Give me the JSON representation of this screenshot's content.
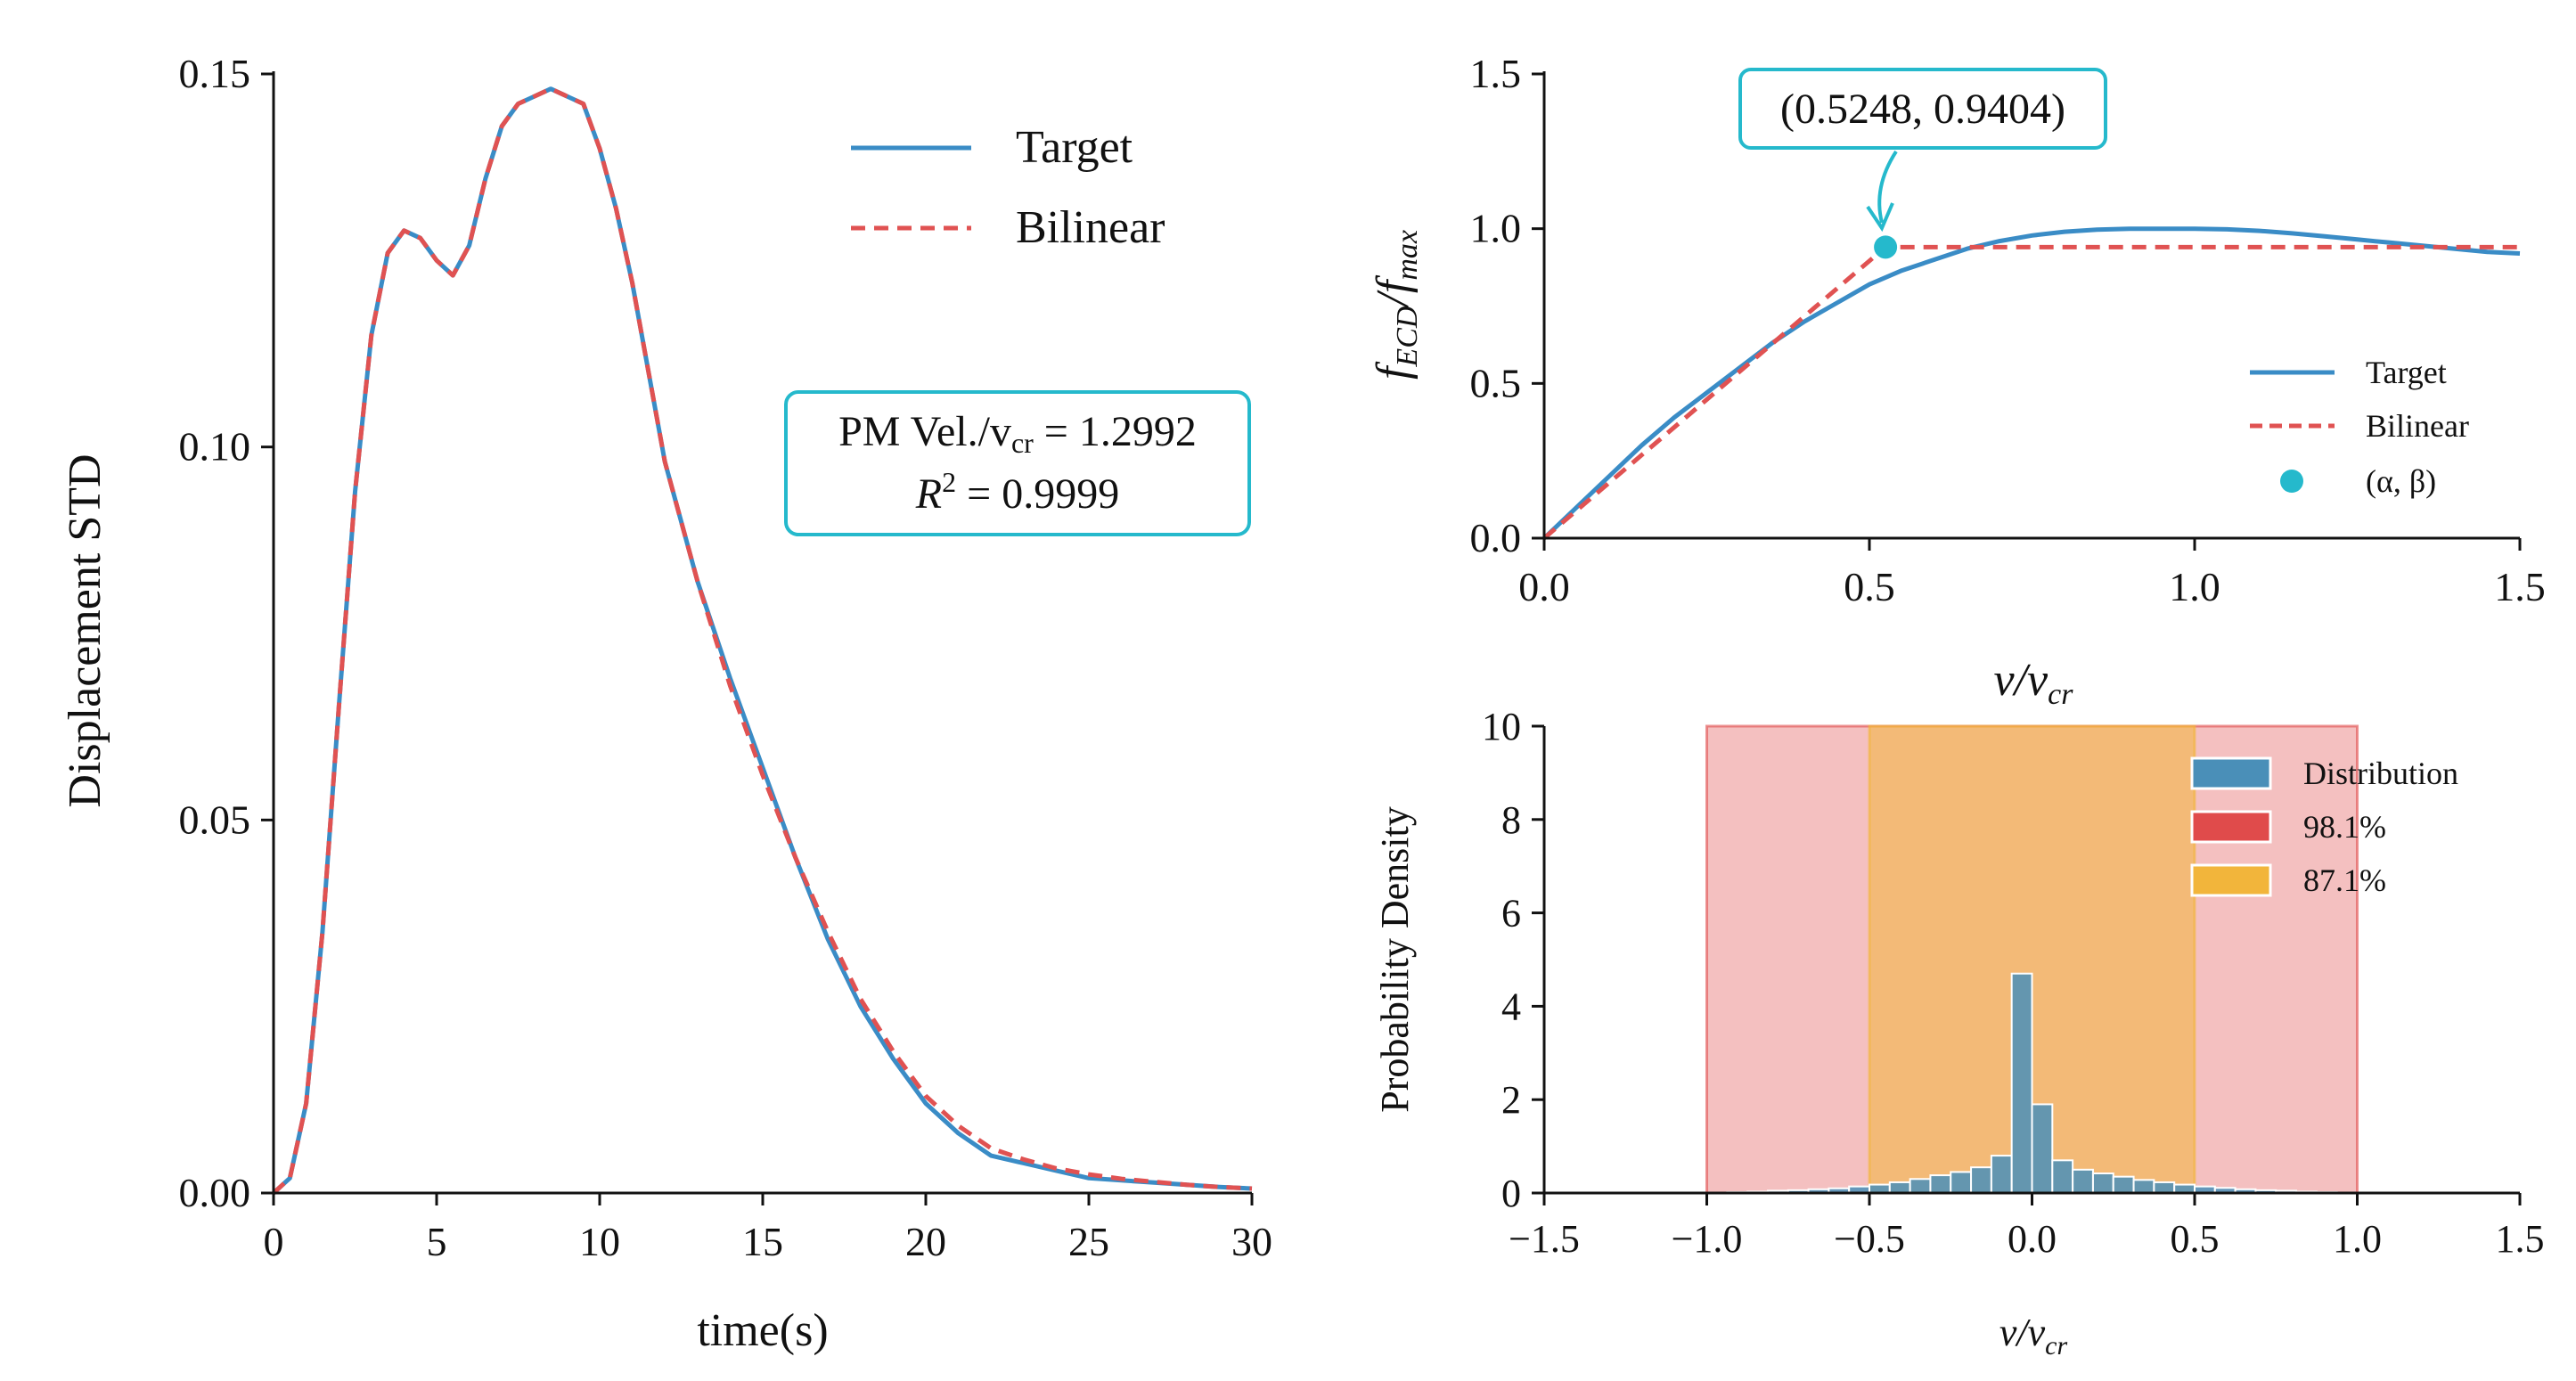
{
  "colors": {
    "target": "#3a8cc6",
    "bilinear": "#e05252",
    "point": "#25b9cc",
    "annotation_border": "#25b9cc",
    "hist_fill": "#4a8fb8",
    "band_98": "#e04b4b",
    "band_87": "#f2b53b"
  },
  "chart_data": [
    {
      "id": "left",
      "type": "line",
      "title": "",
      "xlabel": "time(s)",
      "ylabel": "Displacement STD",
      "xlim": [
        0,
        30
      ],
      "ylim": [
        0,
        0.15
      ],
      "xticks": [
        0,
        5,
        10,
        15,
        20,
        25,
        30
      ],
      "xtick_labels": [
        "0",
        "5",
        "10",
        "15",
        "20",
        "25",
        "30"
      ],
      "yticks": [
        0,
        0.05,
        0.1,
        0.15
      ],
      "ytick_labels": [
        "0.00",
        "0.05",
        "0.10",
        "0.15"
      ],
      "legend": {
        "position": "upper-right",
        "entries": [
          "Target",
          "Bilinear"
        ]
      },
      "annotation": {
        "line1": "PM Vel./v",
        "line1_sub": "cr",
        "line1_rest": " = 1.2992",
        "line2": "R",
        "line2_sup": "2",
        "line2_rest": " = 0.9999"
      },
      "series": [
        {
          "name": "Target",
          "style": "solid",
          "x": [
            0,
            0.5,
            1,
            1.5,
            2,
            2.5,
            3,
            3.5,
            4,
            4.5,
            5,
            5.5,
            6,
            6.5,
            7,
            7.5,
            8,
            8.5,
            9,
            9.5,
            10,
            10.5,
            11,
            11.5,
            12,
            13,
            14,
            15,
            16,
            17,
            18,
            19,
            20,
            21,
            22,
            23,
            24,
            25,
            26,
            27,
            28,
            29,
            30
          ],
          "y": [
            0,
            0.002,
            0.012,
            0.035,
            0.065,
            0.094,
            0.115,
            0.126,
            0.129,
            0.128,
            0.125,
            0.123,
            0.127,
            0.136,
            0.143,
            0.146,
            0.147,
            0.148,
            0.147,
            0.146,
            0.14,
            0.132,
            0.122,
            0.11,
            0.098,
            0.082,
            0.069,
            0.057,
            0.045,
            0.034,
            0.025,
            0.018,
            0.012,
            0.008,
            0.005,
            0.004,
            0.003,
            0.002,
            0.0017,
            0.0014,
            0.0011,
            0.0008,
            0.0006
          ]
        },
        {
          "name": "Bilinear",
          "style": "dashed",
          "x": [
            0,
            0.5,
            1,
            1.5,
            2,
            2.5,
            3,
            3.5,
            4,
            4.5,
            5,
            5.5,
            6,
            6.5,
            7,
            7.5,
            8,
            8.5,
            9,
            9.5,
            10,
            10.5,
            11,
            11.5,
            12,
            13,
            14,
            15,
            16,
            17,
            18,
            19,
            20,
            21,
            22,
            23,
            24,
            25,
            26,
            27,
            28,
            29,
            30
          ],
          "y": [
            0,
            0.002,
            0.012,
            0.035,
            0.065,
            0.094,
            0.115,
            0.126,
            0.129,
            0.128,
            0.125,
            0.123,
            0.127,
            0.136,
            0.143,
            0.146,
            0.147,
            0.148,
            0.147,
            0.146,
            0.14,
            0.132,
            0.122,
            0.11,
            0.098,
            0.082,
            0.068,
            0.056,
            0.045,
            0.035,
            0.026,
            0.019,
            0.013,
            0.009,
            0.006,
            0.0045,
            0.0033,
            0.0025,
            0.0019,
            0.0015,
            0.0011,
            0.0008,
            0.0006
          ]
        }
      ]
    },
    {
      "id": "top-right",
      "type": "line",
      "title": "",
      "xlabel": "v/v",
      "xlabel_sub": "cr",
      "ylabel": "f",
      "ylabel_sub": "ECD",
      "ylabel_mid": "/f",
      "ylabel_sub2": "max",
      "xlim": [
        0,
        1.5
      ],
      "ylim": [
        0,
        1.5
      ],
      "xticks": [
        0,
        0.5,
        1.0,
        1.5
      ],
      "xtick_labels": [
        "0.0",
        "0.5",
        "1.0",
        "1.5"
      ],
      "yticks": [
        0,
        0.5,
        1.0,
        1.5
      ],
      "ytick_labels": [
        "0.0",
        "0.5",
        "1.0",
        "1.5"
      ],
      "legend": {
        "position": "lower-right",
        "entries": [
          "Target",
          "Bilinear",
          "(α, β)"
        ]
      },
      "point": {
        "x": 0.5248,
        "y": 0.9404
      },
      "annotation": "(0.5248, 0.9404)",
      "series": [
        {
          "name": "Target",
          "style": "solid",
          "x": [
            0,
            0.05,
            0.1,
            0.15,
            0.2,
            0.25,
            0.3,
            0.35,
            0.4,
            0.45,
            0.5,
            0.55,
            0.6,
            0.65,
            0.7,
            0.75,
            0.8,
            0.85,
            0.9,
            0.95,
            1.0,
            1.05,
            1.1,
            1.15,
            1.2,
            1.25,
            1.3,
            1.35,
            1.4,
            1.45,
            1.5
          ],
          "y": [
            0,
            0.1,
            0.2,
            0.3,
            0.39,
            0.47,
            0.55,
            0.63,
            0.7,
            0.76,
            0.82,
            0.865,
            0.9,
            0.935,
            0.96,
            0.978,
            0.99,
            0.997,
            1.0,
            1.0,
            1.0,
            0.998,
            0.993,
            0.985,
            0.975,
            0.965,
            0.955,
            0.945,
            0.935,
            0.925,
            0.92
          ]
        },
        {
          "name": "Bilinear",
          "style": "dashed",
          "x": [
            0,
            0.5248,
            1.5
          ],
          "y": [
            0,
            0.9404,
            0.9404
          ]
        }
      ]
    },
    {
      "id": "bottom-right",
      "type": "bar",
      "title": "",
      "xlabel": "v/v",
      "xlabel_sub": "cr",
      "ylabel": "Probability Density",
      "xlim": [
        -1.5,
        1.5
      ],
      "ylim": [
        0,
        10
      ],
      "xticks": [
        -1.5,
        -1.0,
        -0.5,
        0.0,
        0.5,
        1.0,
        1.5
      ],
      "xtick_labels": [
        "−1.5",
        "−1.0",
        "−0.5",
        "0.0",
        "0.5",
        "1.0",
        "1.5"
      ],
      "yticks": [
        0,
        2,
        4,
        6,
        8,
        10
      ],
      "ytick_labels": [
        "0",
        "2",
        "4",
        "6",
        "8",
        "10"
      ],
      "legend": {
        "position": "upper-right",
        "entries": [
          "Distribution",
          "98.1%",
          "87.1%"
        ]
      },
      "bands": [
        {
          "name": "98.1%",
          "x0": -1.0,
          "x1": 1.0
        },
        {
          "name": "87.1%",
          "x0": -0.5,
          "x1": 0.5
        }
      ],
      "bins": {
        "edges_start": -1.0,
        "bin_width": 0.0625,
        "values": [
          0.01,
          0.02,
          0.03,
          0.05,
          0.06,
          0.08,
          0.1,
          0.14,
          0.18,
          0.23,
          0.3,
          0.38,
          0.45,
          0.55,
          0.8,
          4.7,
          1.9,
          0.7,
          0.5,
          0.42,
          0.35,
          0.28,
          0.23,
          0.18,
          0.14,
          0.11,
          0.08,
          0.06,
          0.05,
          0.03,
          0.02,
          0.01
        ]
      }
    }
  ]
}
